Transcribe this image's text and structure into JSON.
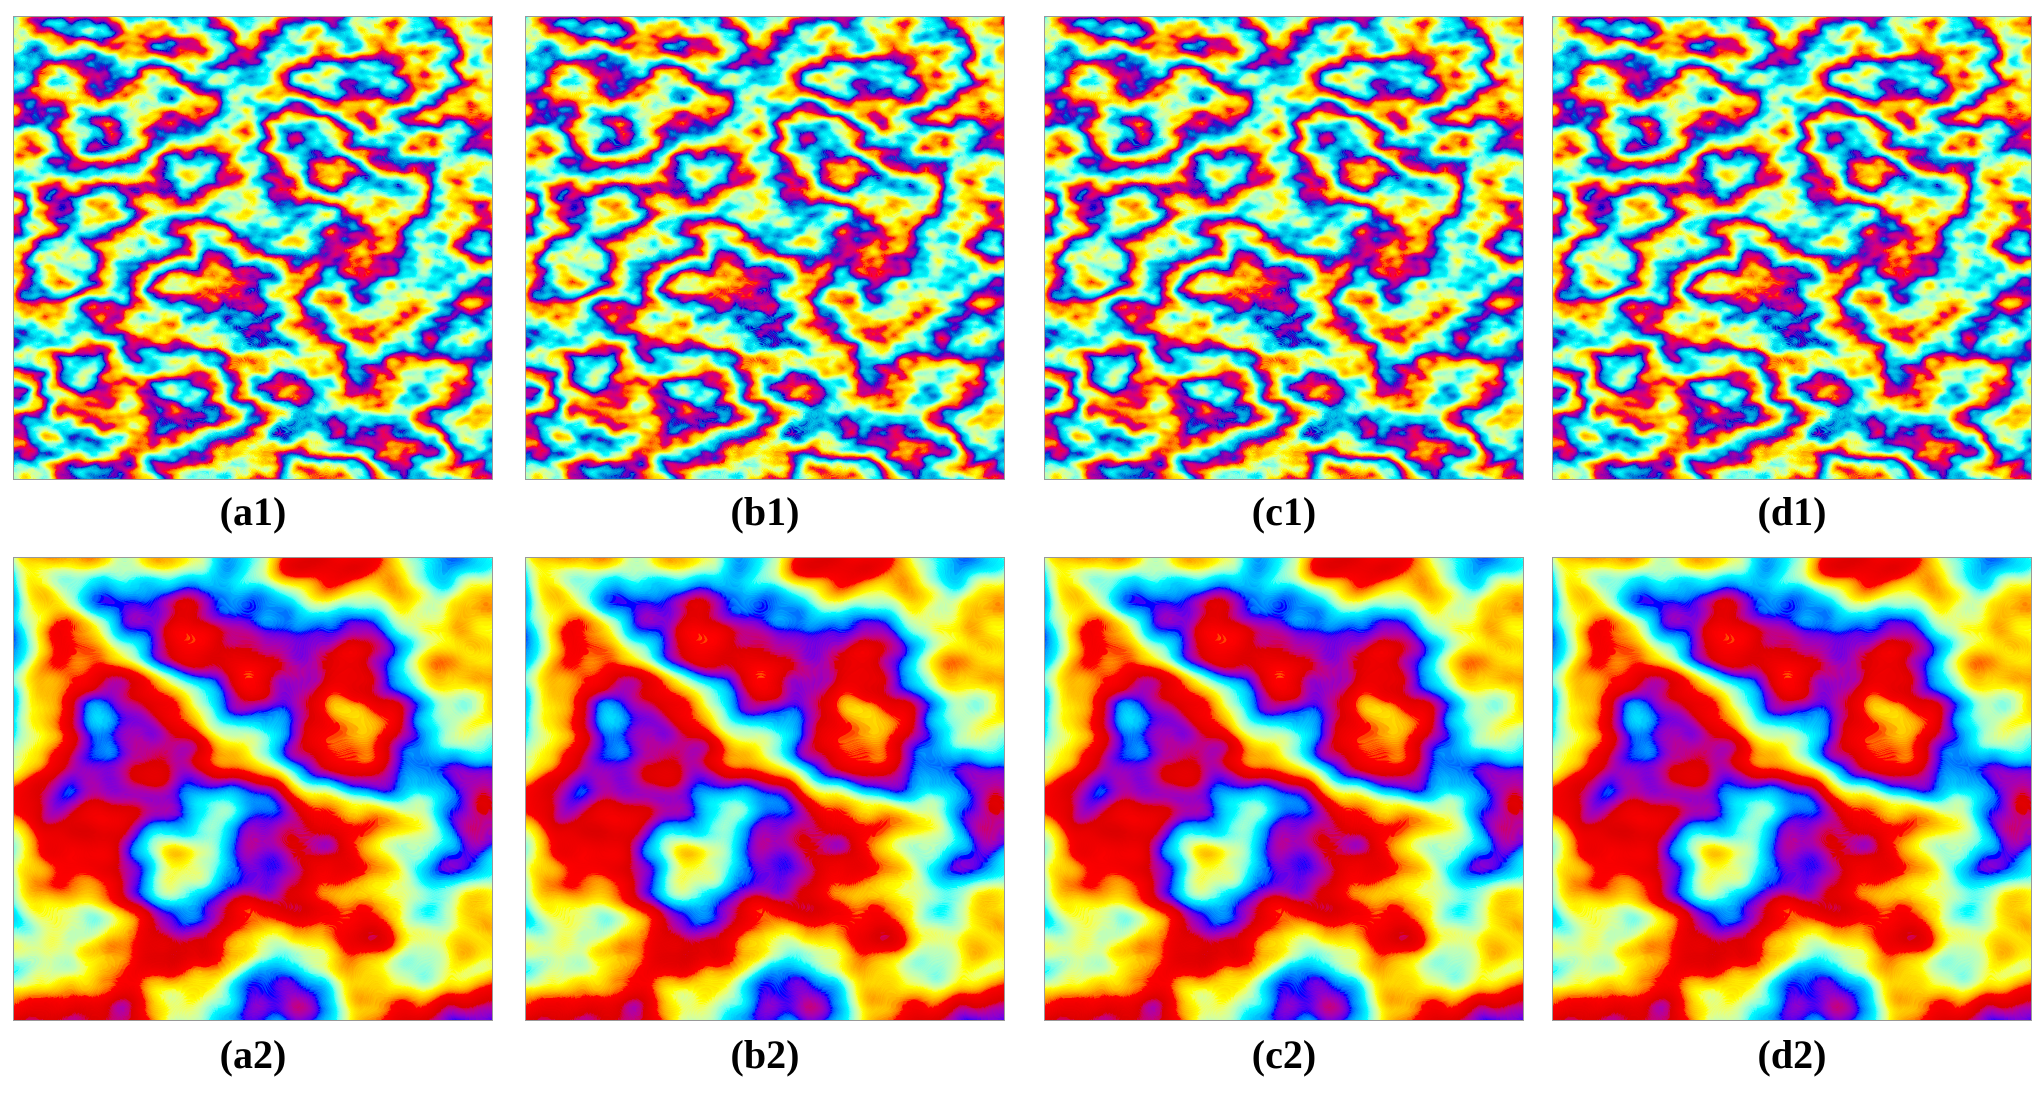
{
  "panels": [
    {
      "label": "(a1)"
    },
    {
      "label": "(b1)"
    },
    {
      "label": "(c1)"
    },
    {
      "label": "(d1)"
    },
    {
      "label": "(a2)"
    },
    {
      "label": "(b2)"
    },
    {
      "label": "(c2)"
    },
    {
      "label": "(d2)"
    }
  ]
}
